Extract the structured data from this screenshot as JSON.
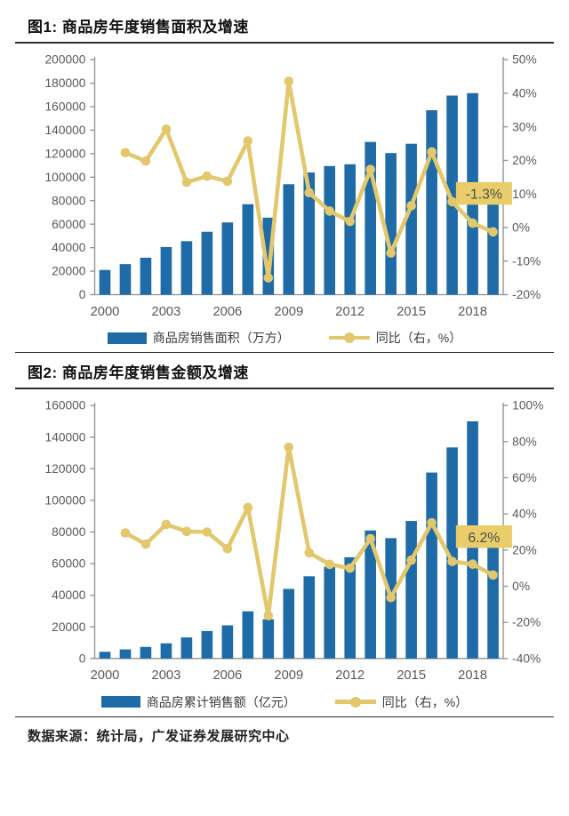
{
  "page": {
    "background": "#ffffff",
    "source_note": "数据来源：统计局，广发证券发展研究中心"
  },
  "colors": {
    "bar": "#1e6ba8",
    "line": "#e3c76d",
    "marker": "#e3c76d",
    "annotation_bg": "#e8cd6a",
    "annotation_text": "#4d4d4d",
    "axis": "#8f8f8f",
    "tick_text": "#595959",
    "title_text": "#111111",
    "rule": "#2e2e2e",
    "legend_text": "#3a3a3a"
  },
  "chart_data": [
    {
      "type": "combo_bar_line",
      "title": "图1:  商品房年度销售面积及增速",
      "categories": [
        "2000",
        "2001",
        "2002",
        "2003",
        "2004",
        "2005",
        "2006",
        "2007",
        "2008",
        "2009",
        "2010",
        "2011",
        "2012",
        "2013",
        "2014",
        "2015",
        "2016",
        "2017",
        "2018",
        "2019"
      ],
      "x_tick_labels": [
        "2000",
        "2003",
        "2006",
        "2009",
        "2012",
        "2015",
        "2018"
      ],
      "left_axis": {
        "min": 0,
        "max": 200000,
        "step": 20000
      },
      "right_axis": {
        "min": -20,
        "max": 50,
        "step": 10,
        "suffix": "%"
      },
      "grid": false,
      "legend_position": "bottom",
      "series": [
        {
          "name": "商品房销售面积（万方）",
          "type": "bar",
          "axis": "left",
          "values": [
            21000,
            26000,
            31500,
            40500,
            45500,
            53500,
            61500,
            77000,
            65500,
            94000,
            104000,
            109500,
            111000,
            130000,
            120500,
            128500,
            157000,
            169500,
            171500,
            88800
          ]
        },
        {
          "name": "同比（右，%）",
          "type": "line",
          "axis": "right",
          "values": [
            null,
            22.3,
            19.8,
            29.3,
            13.5,
            15.3,
            13.8,
            25.8,
            -15.0,
            43.6,
            10.4,
            4.9,
            1.8,
            17.3,
            -7.6,
            6.5,
            22.5,
            7.7,
            1.3,
            -1.3
          ]
        }
      ],
      "annotation": {
        "text": "-1.3%"
      }
    },
    {
      "type": "combo_bar_line",
      "title": "图2:  商品房年度销售金额及增速",
      "categories": [
        "2000",
        "2001",
        "2002",
        "2003",
        "2004",
        "2005",
        "2006",
        "2007",
        "2008",
        "2009",
        "2010",
        "2011",
        "2012",
        "2013",
        "2014",
        "2015",
        "2016",
        "2017",
        "2018",
        "2019"
      ],
      "x_tick_labels": [
        "2000",
        "2003",
        "2006",
        "2009",
        "2012",
        "2015",
        "2018"
      ],
      "left_axis": {
        "min": 0,
        "max": 160000,
        "step": 20000
      },
      "right_axis": {
        "min": -40,
        "max": 100,
        "step": 20,
        "suffix": "%"
      },
      "grid": false,
      "legend_position": "bottom",
      "series": [
        {
          "name": "商品房累计销售额（亿元）",
          "type": "bar",
          "axis": "left",
          "values": [
            4200,
            5800,
            7300,
            9600,
            13300,
            17400,
            21000,
            29800,
            24800,
            44000,
            52000,
            58000,
            64000,
            81000,
            76100,
            87000,
            117600,
            133500,
            150000,
            83200
          ]
        },
        {
          "name": "同比（右，%）",
          "type": "line",
          "axis": "right",
          "values": [
            null,
            29.5,
            23.3,
            34.2,
            30.3,
            30.0,
            20.8,
            43.5,
            -16.3,
            76.9,
            18.5,
            12.1,
            10.0,
            26.3,
            -6.3,
            14.4,
            35.1,
            13.7,
            12.2,
            6.2
          ]
        }
      ],
      "annotation": {
        "text": "6.2%"
      }
    }
  ]
}
